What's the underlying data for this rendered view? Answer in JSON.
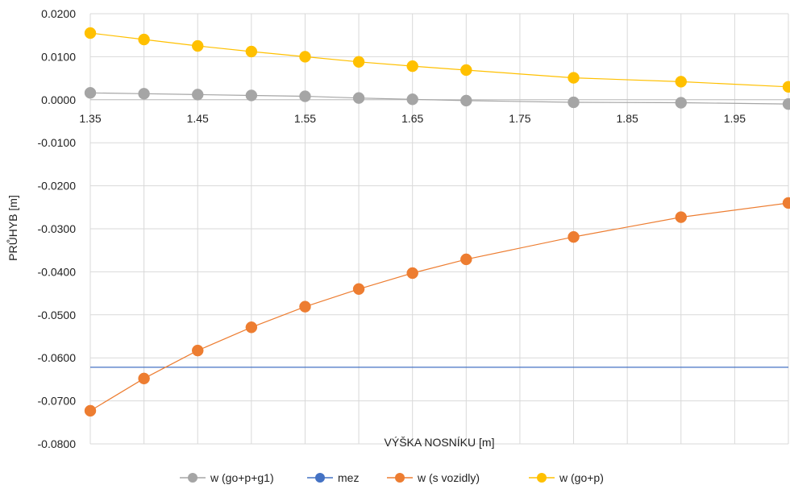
{
  "chart_data": {
    "type": "line",
    "xlabel": "VÝŠKA NOSNÍKU [m]",
    "ylabel": "PRŮHYB [m]",
    "xlim": [
      1.35,
      2.0
    ],
    "ylim": [
      -0.08,
      0.02
    ],
    "xticks": [
      "1.35",
      "1.45",
      "1.55",
      "1.65",
      "1.75",
      "1.85",
      "1.95"
    ],
    "yticks": [
      "0.0200",
      "0.0100",
      "0.0000",
      "-0.0100",
      "-0.0200",
      "-0.0300",
      "-0.0400",
      "-0.0500",
      "-0.0600",
      "-0.0700",
      "-0.0800"
    ],
    "grid": true,
    "legend_position": "bottom",
    "series": [
      {
        "name": "w (go+p+g1)",
        "color": "#a5a5a5",
        "x": [
          1.35,
          1.4,
          1.45,
          1.5,
          1.55,
          1.6,
          1.65,
          1.7,
          1.8,
          1.9,
          2.0
        ],
        "y": [
          0.0016,
          0.0014,
          0.0012,
          0.001,
          0.0008,
          0.0004,
          0.0001,
          -0.0002,
          -0.0006,
          -0.0007,
          -0.001
        ]
      },
      {
        "name": "mez",
        "color": "#4472c4",
        "x": [
          1.35,
          2.0
        ],
        "y": [
          -0.0622,
          -0.0622
        ],
        "markers": false
      },
      {
        "name": "w (s vozidly)",
        "color": "#ed7d31",
        "x": [
          1.35,
          1.4,
          1.45,
          1.5,
          1.55,
          1.6,
          1.65,
          1.7,
          1.8,
          1.9,
          2.0
        ],
        "y": [
          -0.0723,
          -0.0648,
          -0.0583,
          -0.0529,
          -0.0481,
          -0.044,
          -0.0403,
          -0.0371,
          -0.0319,
          -0.0273,
          -0.024
        ]
      },
      {
        "name": "w (go+p)",
        "color": "#ffc000",
        "x": [
          1.35,
          1.4,
          1.45,
          1.5,
          1.55,
          1.6,
          1.65,
          1.7,
          1.8,
          1.9,
          2.0
        ],
        "y": [
          0.0155,
          0.014,
          0.0125,
          0.0112,
          0.01,
          0.0088,
          0.0078,
          0.0069,
          0.0051,
          0.0042,
          0.003
        ]
      }
    ]
  }
}
